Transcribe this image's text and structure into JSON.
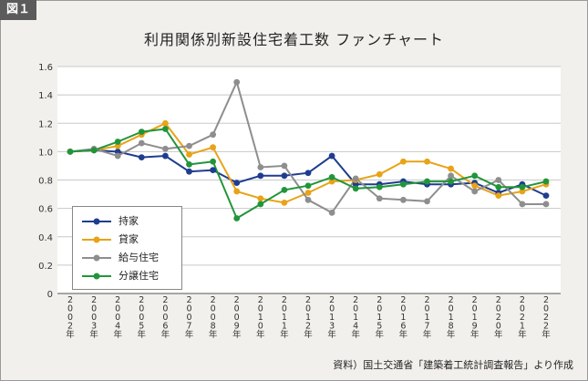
{
  "figure_label": "図１",
  "source_note": "資料）国土交通省「建築着工統計調査報告」より作成",
  "chart_data": {
    "type": "line",
    "title": "利用関係別新設住宅着工数 ファンチャート",
    "x": [
      "2002年",
      "2003年",
      "2004年",
      "2005年",
      "2006年",
      "2007年",
      "2008年",
      "2009年",
      "2010年",
      "2011年",
      "2012年",
      "2013年",
      "2014年",
      "2015年",
      "2016年",
      "2017年",
      "2018年",
      "2019年",
      "2020年",
      "2021年",
      "2022年"
    ],
    "yticks": [
      "0",
      "0.2",
      "0.4",
      "0.6",
      "0.8",
      "1.0",
      "1.2",
      "1.4",
      "1.6"
    ],
    "ylim": [
      0,
      1.6
    ],
    "grid": true,
    "legend_position": "bottom-left",
    "series": [
      {
        "name": "持家",
        "color": "#1f3d8f",
        "values": [
          1.0,
          1.01,
          1.0,
          0.96,
          0.97,
          0.86,
          0.87,
          0.78,
          0.83,
          0.83,
          0.85,
          0.97,
          0.77,
          0.77,
          0.79,
          0.77,
          0.77,
          0.78,
          0.71,
          0.77,
          0.69
        ]
      },
      {
        "name": "貸家",
        "color": "#e8a317",
        "values": [
          1.0,
          1.01,
          1.04,
          1.12,
          1.2,
          0.98,
          1.03,
          0.72,
          0.67,
          0.64,
          0.71,
          0.79,
          0.8,
          0.84,
          0.93,
          0.93,
          0.88,
          0.76,
          0.69,
          0.72,
          0.77
        ]
      },
      {
        "name": "給与住宅",
        "color": "#8e8e8e",
        "values": [
          1.0,
          1.02,
          0.97,
          1.06,
          1.02,
          1.04,
          1.12,
          1.49,
          0.89,
          0.9,
          0.66,
          0.57,
          0.81,
          0.67,
          0.66,
          0.65,
          0.83,
          0.72,
          0.8,
          0.63,
          0.63
        ]
      },
      {
        "name": "分譲住宅",
        "color": "#22953a",
        "values": [
          1.0,
          1.01,
          1.07,
          1.14,
          1.16,
          0.91,
          0.93,
          0.53,
          0.63,
          0.73,
          0.76,
          0.82,
          0.74,
          0.75,
          0.77,
          0.79,
          0.79,
          0.83,
          0.75,
          0.75,
          0.79
        ]
      }
    ]
  }
}
